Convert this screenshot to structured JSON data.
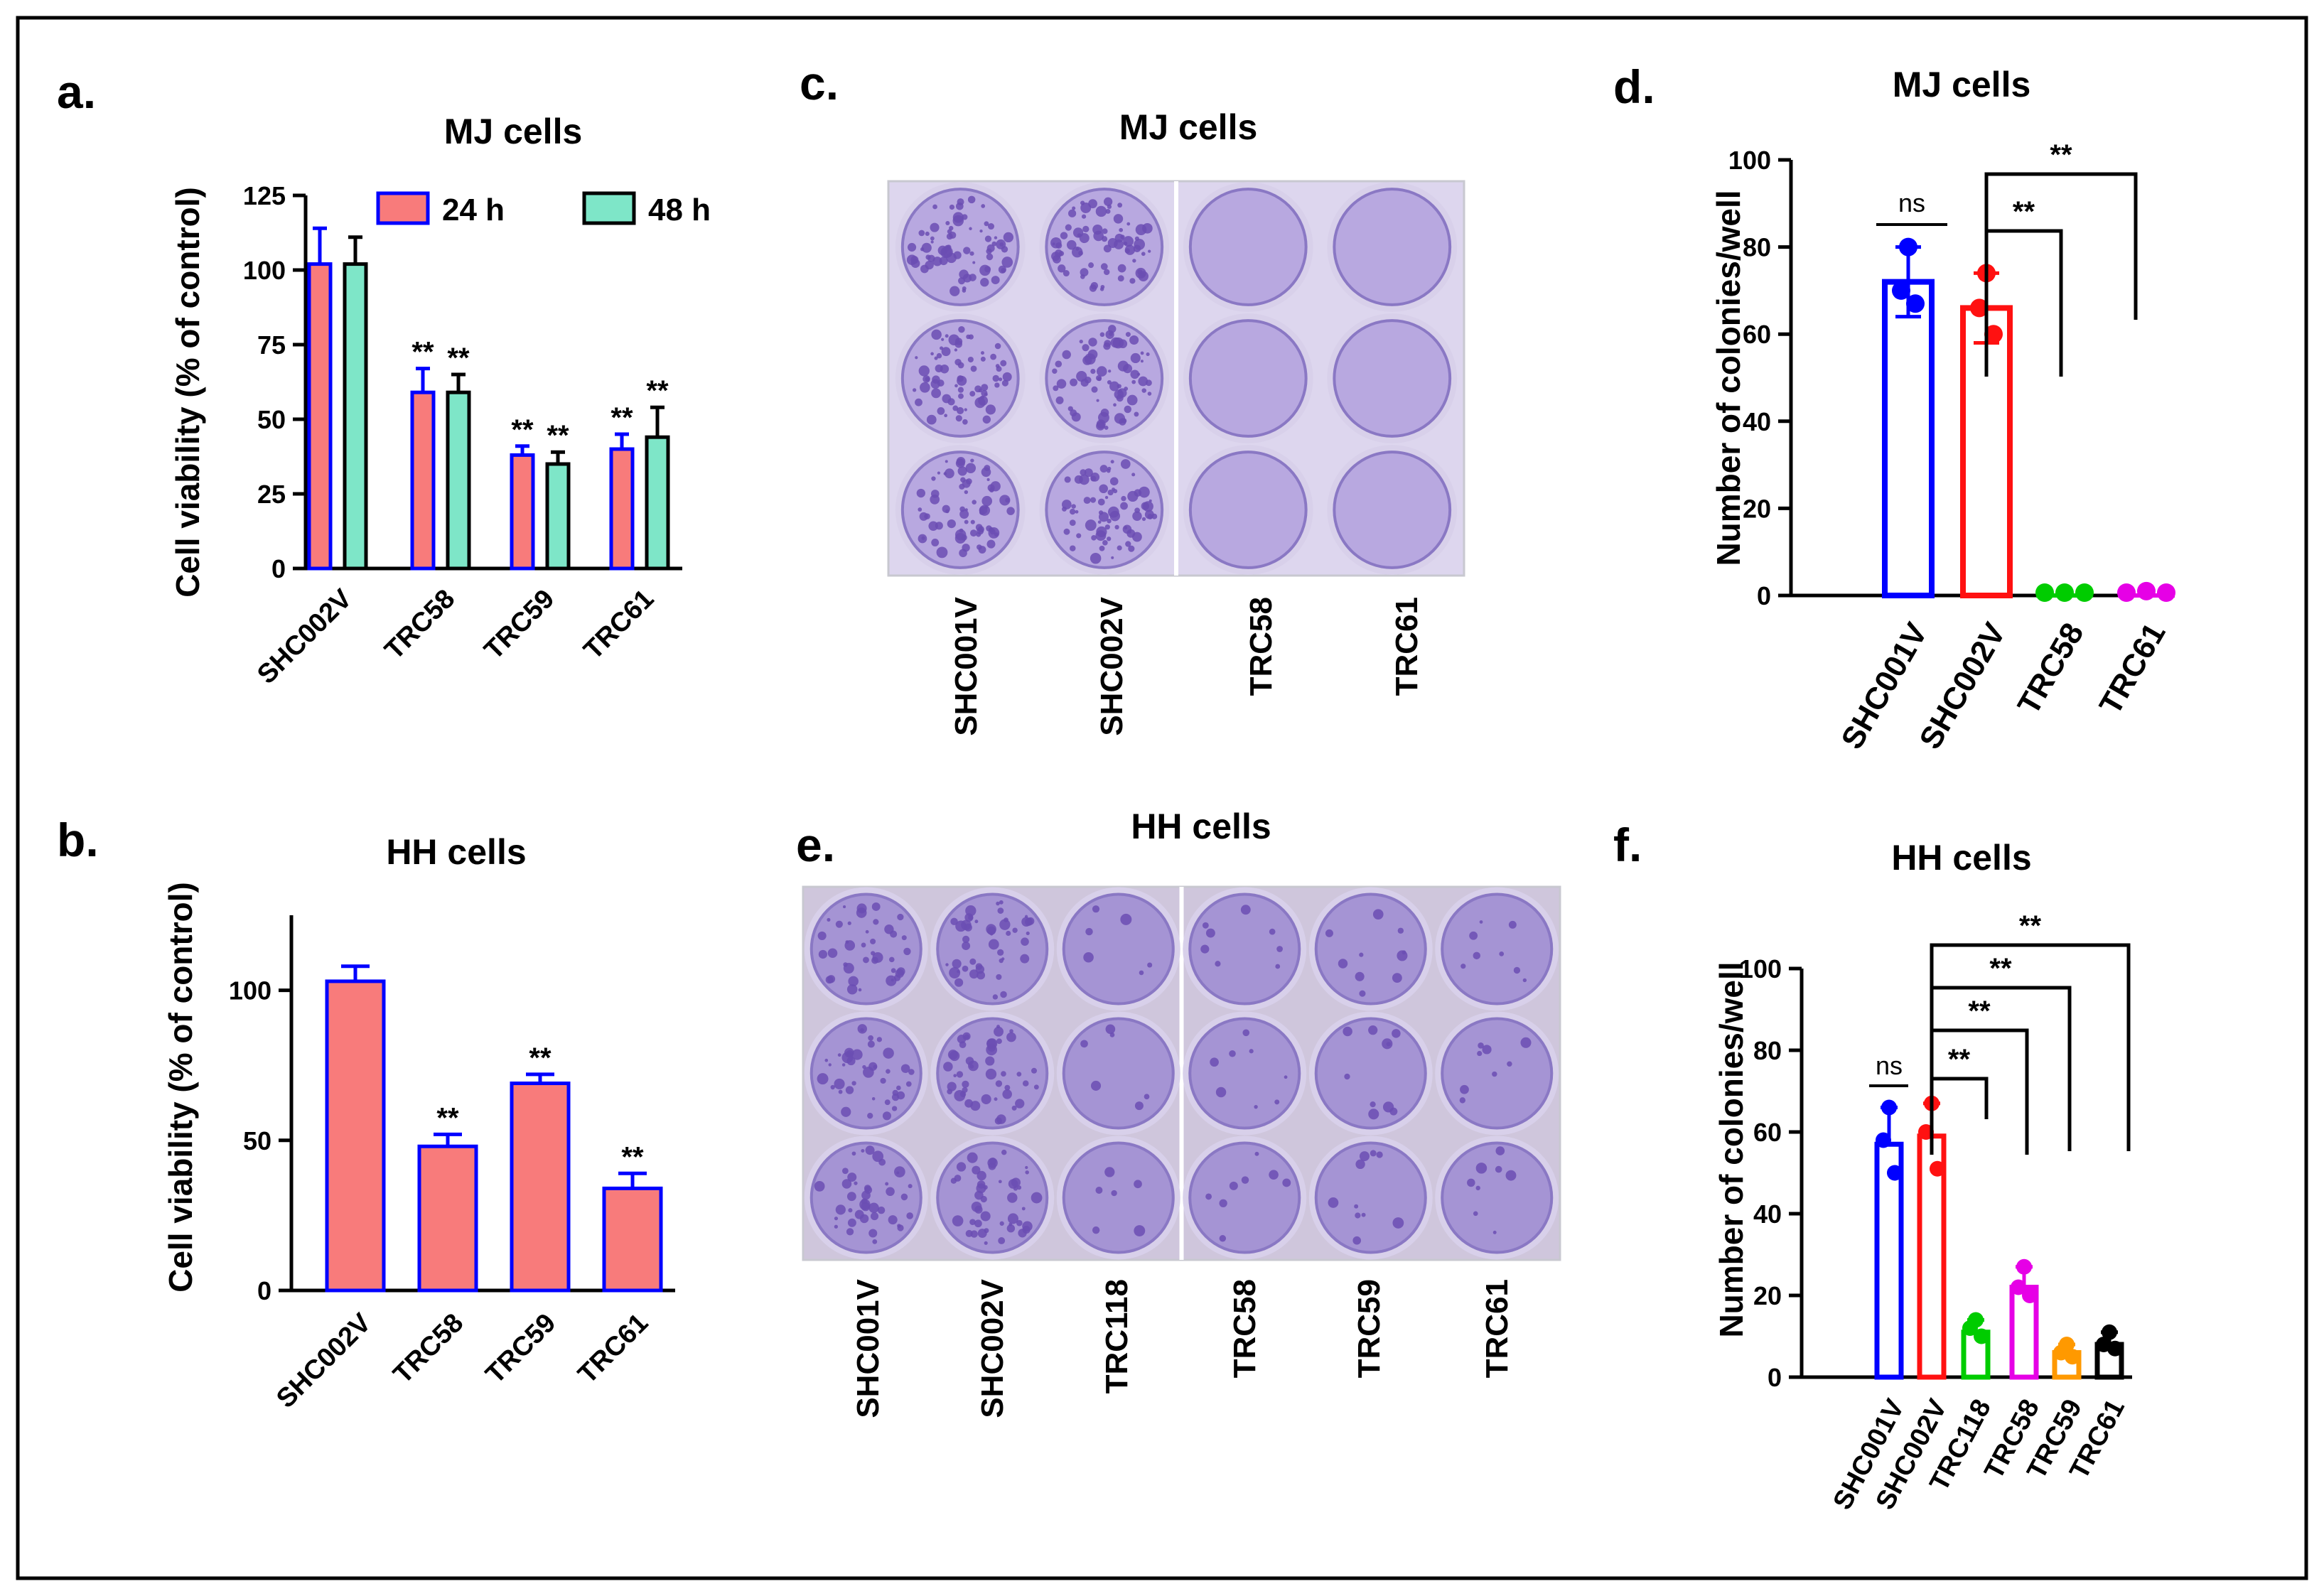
{
  "colors": {
    "blue_edge": "#0000ff",
    "salmon": "#f87b7b",
    "teal": "#7ee6c8",
    "red": "#ff1111",
    "green": "#00cc00",
    "magenta": "#e600e6",
    "orange": "#ff9900",
    "black": "#000000",
    "crystal_violet": "#6b4db3"
  },
  "chart_data": [
    {
      "panel": "a.",
      "type": "bar",
      "title": "MJ cells",
      "ylabel": "Cell viability (% of control)",
      "ylim": [
        0,
        125
      ],
      "yticks": [
        "0",
        "25",
        "50",
        "75",
        "100",
        "125"
      ],
      "categories": [
        "SHC002V",
        "TRC58",
        "TRC59",
        "TRC61"
      ],
      "series": [
        {
          "name": "24 h",
          "values": [
            102,
            59,
            38,
            40
          ],
          "errors": [
            12,
            8,
            3,
            5
          ],
          "annotations": [
            "",
            "**",
            "**",
            "**"
          ]
        },
        {
          "name": "48 h",
          "values": [
            102,
            59,
            35,
            44
          ],
          "errors": [
            9,
            6,
            4,
            10
          ],
          "annotations": [
            "",
            "**",
            "**",
            "**"
          ]
        }
      ]
    },
    {
      "panel": "b.",
      "type": "bar",
      "title": "HH cells",
      "ylabel": "Cell viability (% of control)",
      "ylim": [
        0,
        125
      ],
      "yticks": [
        "0",
        "50",
        "100"
      ],
      "categories": [
        "SHC002V",
        "TRC58",
        "TRC59",
        "TRC61"
      ],
      "values": [
        103,
        48,
        69,
        34
      ],
      "errors": [
        5,
        4,
        3,
        5
      ],
      "annotations": [
        "",
        "**",
        "**",
        "**"
      ]
    },
    {
      "panel": "d.",
      "type": "bar",
      "title": "MJ cells",
      "ylabel": "Number of colonies/well",
      "ylim": [
        0,
        100
      ],
      "yticks": [
        "0",
        "20",
        "40",
        "60",
        "80",
        "100"
      ],
      "categories": [
        "SHC001V",
        "SHC002V",
        "TRC58",
        "TRC61"
      ],
      "values": [
        72,
        66,
        0,
        0.5
      ],
      "errors": [
        8,
        8,
        0,
        0
      ],
      "points": [
        [
          80,
          70,
          67
        ],
        [
          74,
          66,
          60
        ],
        [
          0,
          0,
          0
        ],
        [
          0,
          1,
          0
        ]
      ],
      "comparisons": [
        {
          "label": "ns",
          "from": 0,
          "to": 1
        },
        {
          "label": "**",
          "from": 1,
          "to": 2
        },
        {
          "label": "**",
          "from": 1,
          "to": 3
        }
      ]
    },
    {
      "panel": "f.",
      "type": "bar",
      "title": "HH cells",
      "ylabel": "Number of colonies/well",
      "ylim": [
        0,
        100
      ],
      "yticks": [
        "0",
        "20",
        "40",
        "60",
        "80",
        "100"
      ],
      "categories": [
        "SHC001V",
        "SHC002V",
        "TRC118",
        "TRC58",
        "TRC59",
        "TRC61"
      ],
      "values": [
        57,
        59,
        11,
        22,
        6,
        8
      ],
      "errors": [
        9,
        8,
        3,
        5,
        2,
        3
      ],
      "points": [
        [
          66,
          58,
          50
        ],
        [
          67,
          60,
          51
        ],
        [
          14,
          12,
          10
        ],
        [
          27,
          22,
          20
        ],
        [
          8,
          6,
          5
        ],
        [
          11,
          8,
          7
        ]
      ],
      "comparisons": [
        {
          "label": "ns",
          "from": 0,
          "to": 1
        },
        {
          "label": "**",
          "from": 1,
          "to": 2
        },
        {
          "label": "**",
          "from": 1,
          "to": 3
        },
        {
          "label": "**",
          "from": 1,
          "to": 4
        },
        {
          "label": "**",
          "from": 1,
          "to": 5
        }
      ]
    }
  ],
  "photos": {
    "c": {
      "panel": "c.",
      "title": "MJ cells",
      "columns": [
        "SHC001V",
        "SHC002V",
        "TRC58",
        "TRC61"
      ]
    },
    "e": {
      "panel": "e.",
      "title": "HH cells",
      "columns": [
        "SHC001V",
        "SHC002V",
        "TRC118",
        "TRC58",
        "TRC59",
        "TRC61"
      ]
    }
  }
}
